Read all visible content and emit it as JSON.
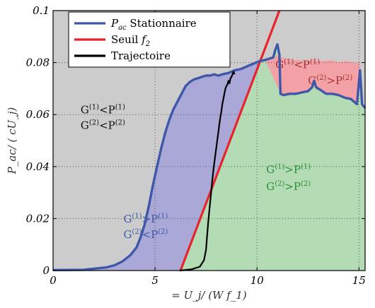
{
  "chart_data": {
    "type": "line",
    "xlabel": "= U_j/ (W f_1)",
    "ylabel": "P_ac/ ( cU_j)",
    "xlim": [
      0,
      15.3
    ],
    "ylim": [
      0,
      0.1
    ],
    "x_ticks": [
      "0",
      "5",
      "10",
      "15"
    ],
    "x_tick_values": [
      0,
      5,
      10,
      15
    ],
    "y_ticks": [
      "0",
      "0.02",
      "0.04",
      "0.06",
      "0.08",
      "0.1"
    ],
    "y_tick_values": [
      0,
      0.02,
      0.04,
      0.06,
      0.08,
      0.1
    ],
    "grid": true,
    "legend_position": "top-left",
    "legend": [
      {
        "key": "pac",
        "label": "Stationnaire",
        "math": "P",
        "sub": "ac",
        "color": "#3e57a9"
      },
      {
        "key": "seuil",
        "label": "Seuil ",
        "math": "f",
        "sub": "2",
        "color": "#e8232b"
      },
      {
        "key": "traj",
        "label": "Trajectoire",
        "math": "",
        "sub": "",
        "color": "#000000"
      }
    ],
    "regions": [
      {
        "key": "gray",
        "color": "#cccccc"
      },
      {
        "key": "blue",
        "color": "#aaa8d6"
      },
      {
        "key": "green",
        "color": "#b3dcb5"
      },
      {
        "key": "red",
        "color": "#f2a2a6"
      }
    ],
    "region_labels": [
      {
        "line1": "G(1)<P(1)",
        "line2": "G(2)<P(2)",
        "color": "#111111",
        "x": 1.35,
        "y1": 0.0605,
        "y2": 0.0545
      },
      {
        "line1": "G(1)>P(1)",
        "line2": "G(2)<P(2)",
        "color": "#3e57a9",
        "x": 3.45,
        "y1": 0.0185,
        "y2": 0.0125
      },
      {
        "line1": "G(1)>P(1)",
        "line2": "G(2)>P(2)",
        "color": "#2d8f3a",
        "x": 10.45,
        "y1": 0.0375,
        "y2": 0.031
      },
      {
        "line1": "G(1)<P(1)",
        "line2": "",
        "color": "#a83131",
        "x": 10.9,
        "y1": 0.0778,
        "y2": null
      },
      {
        "line1": "G(2)>P(2)",
        "line2": "",
        "color": "#a83131",
        "x": 12.5,
        "y1": 0.0718,
        "y2": null
      }
    ],
    "series": [
      {
        "key": "pac",
        "color": "#3e57a9",
        "x": [
          0,
          1.5,
          2.6,
          3.0,
          3.4,
          3.8,
          4.1,
          4.3,
          4.5,
          4.7,
          4.9,
          5.1,
          5.3,
          5.5,
          5.7,
          5.9,
          6.1,
          6.3,
          6.5,
          6.7,
          6.9,
          7.1,
          7.3,
          7.5,
          7.7,
          7.9,
          8.1,
          8.3,
          8.6,
          8.9,
          9.2,
          9.5,
          9.8,
          10.1,
          10.4,
          10.6,
          10.8,
          10.9,
          11.0,
          11.1,
          11.15,
          11.3,
          11.6,
          11.9,
          12.2,
          12.5,
          12.7,
          12.8,
          12.9,
          13.1,
          13.4,
          13.7,
          14.0,
          14.3,
          14.6,
          14.9,
          15.05,
          15.15,
          15.3
        ],
        "y": [
          0.0002,
          0.0003,
          0.0012,
          0.002,
          0.0035,
          0.006,
          0.009,
          0.013,
          0.018,
          0.025,
          0.033,
          0.04,
          0.047,
          0.053,
          0.058,
          0.062,
          0.065,
          0.068,
          0.071,
          0.0725,
          0.0735,
          0.074,
          0.0745,
          0.075,
          0.075,
          0.0755,
          0.075,
          0.0755,
          0.076,
          0.077,
          0.0775,
          0.0785,
          0.0795,
          0.0805,
          0.081,
          0.0815,
          0.082,
          0.085,
          0.087,
          0.083,
          0.068,
          0.0675,
          0.068,
          0.068,
          0.0685,
          0.069,
          0.0705,
          0.073,
          0.0705,
          0.0695,
          0.068,
          0.068,
          0.0675,
          0.0665,
          0.066,
          0.064,
          0.077,
          0.064,
          0.0625
        ]
      },
      {
        "key": "seuil",
        "color": "#e8232b",
        "x": [
          6.25,
          11.1
        ],
        "y": [
          0,
          0.1
        ]
      },
      {
        "key": "traj",
        "color": "#000000",
        "x": [
          6.2,
          6.8,
          7.2,
          7.4,
          7.5,
          7.55,
          7.6,
          7.65,
          7.7,
          7.75,
          7.8,
          7.85,
          7.9,
          7.95,
          8.0,
          8.05,
          8.1,
          8.15,
          8.2,
          8.25,
          8.3,
          8.35,
          8.4,
          8.45,
          8.5,
          8.55,
          8.6,
          8.65,
          8.7,
          8.75,
          8.8,
          8.85,
          8.9
        ],
        "y": [
          0.0,
          0.0005,
          0.0015,
          0.004,
          0.008,
          0.013,
          0.018,
          0.022,
          0.026,
          0.03,
          0.034,
          0.038,
          0.041,
          0.044,
          0.047,
          0.05,
          0.053,
          0.056,
          0.059,
          0.061,
          0.064,
          0.066,
          0.068,
          0.07,
          0.071,
          0.0715,
          0.073,
          0.072,
          0.074,
          0.0745,
          0.0755,
          0.0765,
          0.0755
        ]
      }
    ]
  }
}
